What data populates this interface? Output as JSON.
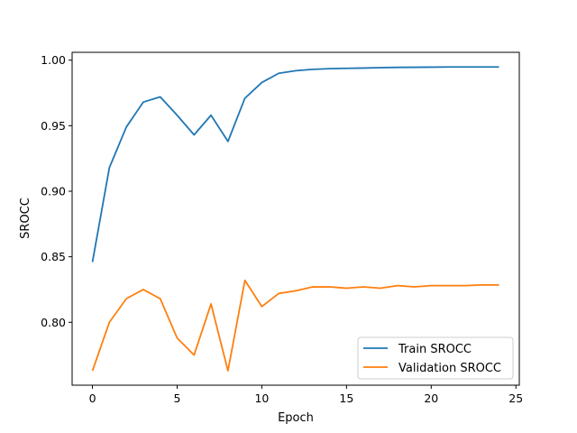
{
  "chart_data": {
    "type": "line",
    "title": "",
    "xlabel": "Epoch",
    "ylabel": "SROCC",
    "xlim": [
      -1.2,
      25.2
    ],
    "ylim": [
      0.752,
      1.006
    ],
    "xticks": [
      0,
      5,
      10,
      15,
      20,
      25
    ],
    "yticks": [
      0.8,
      0.85,
      0.9,
      0.95,
      1.0
    ],
    "ytick_labels": [
      "0.80",
      "0.85",
      "0.90",
      "0.95",
      "1.00"
    ],
    "grid": false,
    "legend_position": "lower-right",
    "x": [
      0,
      1,
      2,
      3,
      4,
      5,
      6,
      7,
      8,
      9,
      10,
      11,
      12,
      13,
      14,
      15,
      16,
      17,
      18,
      19,
      20,
      21,
      22,
      23,
      24
    ],
    "series": [
      {
        "name": "Train SROCC",
        "color": "#1f77b4",
        "values": [
          0.846,
          0.918,
          0.949,
          0.968,
          0.972,
          0.958,
          0.943,
          0.958,
          0.938,
          0.971,
          0.983,
          0.99,
          0.992,
          0.993,
          0.9935,
          0.9938,
          0.994,
          0.9943,
          0.9945,
          0.9946,
          0.9947,
          0.9948,
          0.9948,
          0.9948,
          0.9948
        ]
      },
      {
        "name": "Validation SROCC",
        "color": "#ff7f0e",
        "values": [
          0.763,
          0.8,
          0.818,
          0.825,
          0.818,
          0.788,
          0.775,
          0.814,
          0.763,
          0.832,
          0.812,
          0.822,
          0.824,
          0.827,
          0.827,
          0.826,
          0.827,
          0.826,
          0.828,
          0.827,
          0.828,
          0.828,
          0.828,
          0.8285,
          0.8285
        ]
      }
    ]
  }
}
